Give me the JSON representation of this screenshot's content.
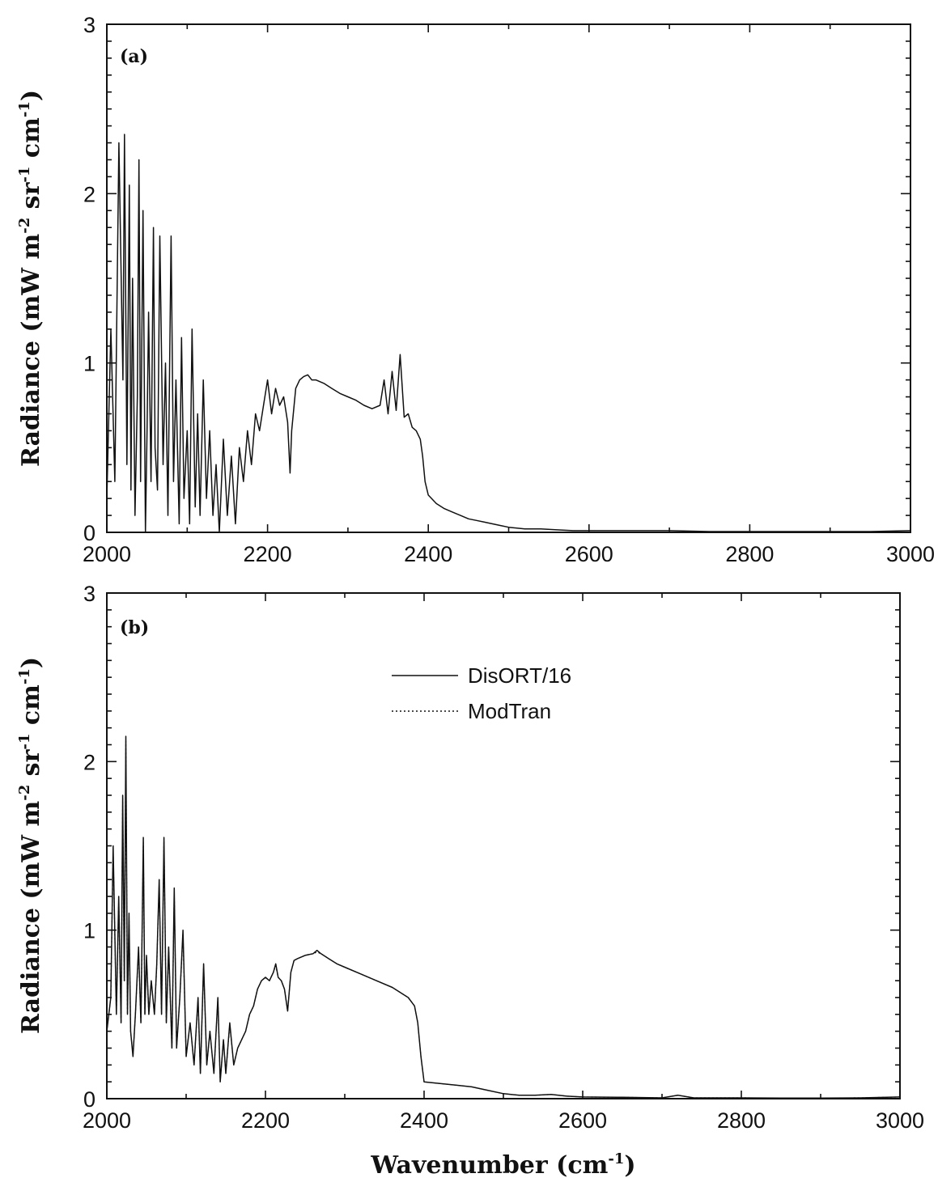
{
  "chart_data": [
    {
      "type": "line",
      "panel_label": "(a)",
      "ylabel_main": "Radiance (mW m",
      "ylabel_sup1": "-2",
      "ylabel_mid1": " sr",
      "ylabel_sup2": "-1",
      "ylabel_mid2": " cm",
      "ylabel_sup3": "-1",
      "ylabel_end": ")",
      "xlabel": "",
      "xlim": [
        2000,
        3000
      ],
      "ylim": [
        0,
        3
      ],
      "xticks": [
        "2000",
        "2200",
        "2400",
        "2600",
        "2800",
        "3000"
      ],
      "yticks": [
        "0",
        "1",
        "2",
        "3"
      ],
      "grid": false,
      "series": [
        {
          "x": [
            2000,
            2005,
            2010,
            2015,
            2020,
            2022,
            2025,
            2028,
            2030,
            2032,
            2035,
            2038,
            2040,
            2042,
            2045,
            2048,
            2050,
            2052,
            2055,
            2058,
            2060,
            2063,
            2066,
            2070,
            2073,
            2076,
            2080,
            2083,
            2086,
            2090,
            2093,
            2096,
            2100,
            2103,
            2106,
            2110,
            2113,
            2116,
            2120,
            2124,
            2128,
            2132,
            2136,
            2140,
            2145,
            2150,
            2155,
            2160,
            2165,
            2170,
            2175,
            2180,
            2185,
            2190,
            2195,
            2200,
            2205,
            2210,
            2215,
            2220,
            2225,
            2228,
            2230,
            2235,
            2240,
            2245,
            2250,
            2255,
            2260,
            2270,
            2280,
            2290,
            2300,
            2310,
            2320,
            2330,
            2340,
            2345,
            2350,
            2355,
            2360,
            2365,
            2370,
            2375,
            2380,
            2385,
            2390,
            2393,
            2396,
            2400,
            2410,
            2420,
            2430,
            2440,
            2450,
            2460,
            2470,
            2480,
            2490,
            2500,
            2520,
            2540,
            2560,
            2580,
            2600,
            2650,
            2700,
            2750,
            2800,
            2850,
            2900,
            2950,
            3000
          ],
          "values": [
            0.2,
            1.2,
            0.3,
            2.3,
            0.9,
            2.35,
            0.4,
            2.05,
            0.25,
            1.5,
            0.1,
            0.8,
            2.2,
            0.3,
            1.9,
            0.0,
            0.6,
            1.3,
            0.3,
            1.8,
            0.5,
            0.25,
            1.75,
            0.4,
            1.0,
            0.1,
            1.75,
            0.3,
            0.9,
            0.05,
            1.15,
            0.2,
            0.6,
            0.05,
            1.2,
            0.15,
            0.7,
            0.1,
            0.9,
            0.2,
            0.6,
            0.1,
            0.4,
            0.0,
            0.55,
            0.1,
            0.45,
            0.05,
            0.5,
            0.3,
            0.6,
            0.4,
            0.7,
            0.6,
            0.75,
            0.9,
            0.7,
            0.85,
            0.75,
            0.8,
            0.65,
            0.35,
            0.6,
            0.85,
            0.9,
            0.92,
            0.93,
            0.9,
            0.9,
            0.88,
            0.85,
            0.82,
            0.8,
            0.78,
            0.75,
            0.73,
            0.75,
            0.9,
            0.7,
            0.95,
            0.72,
            1.05,
            0.68,
            0.7,
            0.62,
            0.6,
            0.55,
            0.45,
            0.3,
            0.22,
            0.17,
            0.14,
            0.12,
            0.1,
            0.08,
            0.07,
            0.06,
            0.05,
            0.04,
            0.03,
            0.02,
            0.02,
            0.015,
            0.01,
            0.01,
            0.01,
            0.01,
            0.005,
            0.005,
            0.005,
            0.005,
            0.005,
            0.01
          ]
        }
      ]
    },
    {
      "type": "line",
      "panel_label": "(b)",
      "ylabel_main": "Radiance (mW m",
      "ylabel_sup1": "-2",
      "ylabel_mid1": " sr",
      "ylabel_sup2": "-1",
      "ylabel_mid2": " cm",
      "ylabel_sup3": "-1",
      "ylabel_end": ")",
      "xlabel_main": "Wavenumber (cm",
      "xlabel_sup": "-1",
      "xlabel_end": ")",
      "xlim": [
        2000,
        3000
      ],
      "ylim": [
        0,
        3
      ],
      "xticks": [
        "2000",
        "2200",
        "2400",
        "2600",
        "2800",
        "3000"
      ],
      "yticks": [
        "0",
        "1",
        "2",
        "3"
      ],
      "grid": false,
      "legend": {
        "position": "top-center",
        "entries": [
          "DisORT/16",
          "ModTran"
        ]
      },
      "series": [
        {
          "name": "DisORT/16",
          "style": "solid",
          "x": [
            2000,
            2005,
            2008,
            2012,
            2015,
            2018,
            2020,
            2022,
            2024,
            2026,
            2028,
            2030,
            2033,
            2036,
            2040,
            2043,
            2046,
            2048,
            2050,
            2053,
            2056,
            2060,
            2063,
            2066,
            2069,
            2072,
            2075,
            2078,
            2082,
            2085,
            2088,
            2092,
            2096,
            2100,
            2105,
            2110,
            2115,
            2118,
            2122,
            2126,
            2130,
            2135,
            2140,
            2143,
            2147,
            2150,
            2155,
            2160,
            2165,
            2170,
            2175,
            2180,
            2185,
            2190,
            2195,
            2200,
            2205,
            2210,
            2213,
            2216,
            2220,
            2224,
            2228,
            2232,
            2236,
            2240,
            2250,
            2260,
            2265,
            2270,
            2280,
            2290,
            2300,
            2320,
            2340,
            2360,
            2380,
            2388,
            2392,
            2396,
            2400,
            2420,
            2440,
            2460,
            2480,
            2500,
            2520,
            2540,
            2560,
            2580,
            2600,
            2650,
            2700,
            2720,
            2740,
            2800,
            2850,
            2900,
            2950,
            3000
          ],
          "values": [
            0.4,
            0.6,
            1.5,
            0.5,
            1.2,
            0.45,
            1.8,
            0.7,
            2.15,
            0.5,
            1.1,
            0.4,
            0.25,
            0.5,
            0.9,
            0.45,
            1.55,
            0.5,
            0.85,
            0.5,
            0.7,
            0.5,
            0.8,
            1.3,
            0.5,
            1.55,
            0.45,
            0.9,
            0.3,
            1.25,
            0.3,
            0.6,
            1.0,
            0.25,
            0.45,
            0.2,
            0.6,
            0.15,
            0.8,
            0.2,
            0.4,
            0.15,
            0.6,
            0.1,
            0.35,
            0.15,
            0.45,
            0.2,
            0.3,
            0.35,
            0.4,
            0.5,
            0.55,
            0.65,
            0.7,
            0.72,
            0.7,
            0.75,
            0.8,
            0.72,
            0.7,
            0.65,
            0.52,
            0.75,
            0.82,
            0.83,
            0.85,
            0.86,
            0.88,
            0.86,
            0.83,
            0.8,
            0.78,
            0.74,
            0.7,
            0.66,
            0.6,
            0.55,
            0.45,
            0.25,
            0.1,
            0.09,
            0.08,
            0.07,
            0.05,
            0.03,
            0.02,
            0.02,
            0.025,
            0.015,
            0.01,
            0.008,
            0.005,
            0.02,
            0.005,
            0.005,
            0.004,
            0.004,
            0.005,
            0.01
          ]
        },
        {
          "name": "ModTran",
          "style": "dotted",
          "x": [
            2000,
            2005,
            2008,
            2012,
            2015,
            2018,
            2020,
            2022,
            2024,
            2026,
            2028,
            2030,
            2033,
            2036,
            2040,
            2043,
            2046,
            2048,
            2050,
            2053,
            2056,
            2060,
            2063,
            2066,
            2069,
            2072,
            2075,
            2078,
            2082,
            2085,
            2088,
            2092,
            2096,
            2100,
            2105,
            2110,
            2115,
            2118,
            2122,
            2126,
            2130,
            2135,
            2140,
            2143,
            2147,
            2150,
            2155,
            2160,
            2165,
            2170,
            2175,
            2180,
            2185,
            2190,
            2195,
            2200,
            2205,
            2210,
            2213,
            2216,
            2220,
            2224,
            2228,
            2232,
            2236,
            2240,
            2250,
            2260,
            2265,
            2270,
            2280,
            2290,
            2300,
            2320,
            2340,
            2360,
            2380,
            2388,
            2392,
            2396,
            2400,
            2420,
            2440,
            2460,
            2480,
            2500,
            2520,
            2540,
            2560,
            2580,
            2600,
            2650,
            2700,
            2720,
            2740,
            2800,
            2850,
            2900,
            2950,
            3000
          ],
          "values": [
            0.4,
            0.6,
            1.48,
            0.5,
            1.18,
            0.45,
            1.78,
            0.7,
            2.12,
            0.5,
            1.08,
            0.4,
            0.25,
            0.5,
            0.88,
            0.45,
            1.52,
            0.5,
            0.84,
            0.5,
            0.7,
            0.5,
            0.79,
            1.28,
            0.5,
            1.53,
            0.45,
            0.89,
            0.3,
            1.23,
            0.3,
            0.6,
            0.98,
            0.25,
            0.45,
            0.2,
            0.59,
            0.15,
            0.79,
            0.2,
            0.4,
            0.15,
            0.59,
            0.1,
            0.35,
            0.15,
            0.44,
            0.2,
            0.3,
            0.35,
            0.4,
            0.5,
            0.55,
            0.65,
            0.7,
            0.72,
            0.7,
            0.75,
            0.79,
            0.72,
            0.7,
            0.65,
            0.52,
            0.75,
            0.82,
            0.83,
            0.85,
            0.86,
            0.87,
            0.86,
            0.83,
            0.8,
            0.78,
            0.74,
            0.7,
            0.66,
            0.6,
            0.55,
            0.45,
            0.25,
            0.1,
            0.09,
            0.08,
            0.07,
            0.05,
            0.03,
            0.02,
            0.02,
            0.025,
            0.015,
            0.01,
            0.008,
            0.005,
            0.02,
            0.005,
            0.005,
            0.004,
            0.004,
            0.005,
            0.01
          ]
        }
      ]
    }
  ]
}
